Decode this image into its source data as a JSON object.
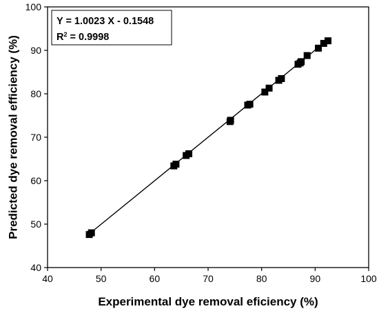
{
  "chart_data": {
    "type": "scatter",
    "title": "",
    "xlabel": "Experimental dye removal eficiency (%)",
    "ylabel": "Predicted dye removal efficiency (%)",
    "xlim": [
      40,
      100
    ],
    "ylim": [
      40,
      100
    ],
    "xticks": [
      40,
      50,
      60,
      70,
      80,
      90,
      100
    ],
    "yticks": [
      40,
      50,
      60,
      70,
      80,
      90,
      100
    ],
    "grid": false,
    "marker": "square",
    "marker_color": "#000000",
    "line_color": "#000000",
    "points": [
      [
        47.8,
        47.6
      ],
      [
        48.2,
        48.0
      ],
      [
        63.6,
        63.4
      ],
      [
        64.0,
        63.8
      ],
      [
        65.9,
        65.8
      ],
      [
        66.4,
        66.2
      ],
      [
        74.1,
        73.6
      ],
      [
        74.2,
        73.9
      ],
      [
        77.4,
        77.4
      ],
      [
        77.8,
        77.6
      ],
      [
        80.6,
        80.4
      ],
      [
        81.4,
        81.3
      ],
      [
        83.2,
        83.1
      ],
      [
        83.7,
        83.5
      ],
      [
        86.8,
        86.8
      ],
      [
        87.2,
        87.1
      ],
      [
        87.4,
        87.4
      ],
      [
        88.5,
        88.8
      ],
      [
        90.6,
        90.5
      ],
      [
        91.6,
        91.6
      ],
      [
        92.4,
        92.2
      ]
    ],
    "fit": {
      "slope": 1.0023,
      "intercept": -0.1548,
      "x_range": [
        47.8,
        92.5
      ]
    },
    "annotation": {
      "equation": "Y = 1.0023 X - 0.1548",
      "r2_prefix": "R",
      "r2_sup": "2",
      "r2_value": " = 0.9998"
    }
  }
}
